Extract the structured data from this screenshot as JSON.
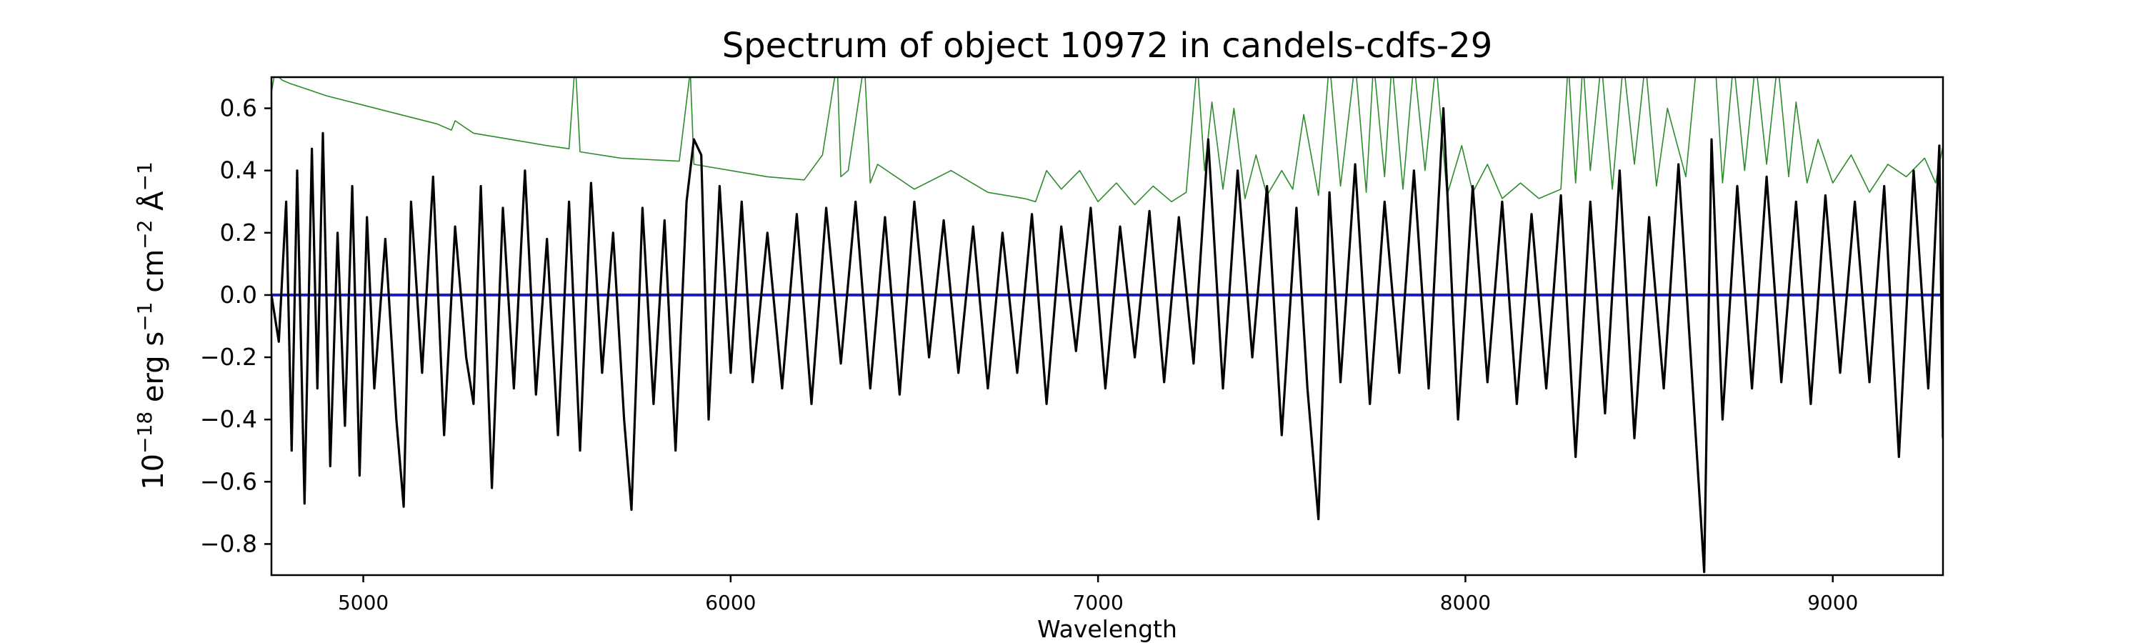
{
  "chart_data": {
    "type": "line",
    "title": "Spectrum of object 10972 in candels-cdfs-29",
    "xlabel": "Wavelength",
    "ylabel_base": "10",
    "ylabel_exp": "−18",
    "ylabel_units": [
      {
        "t": " erg s"
      },
      {
        "t": "−1",
        "sup": true
      },
      {
        "t": " cm"
      },
      {
        "t": "−2",
        "sup": true
      },
      {
        "t": " Å"
      },
      {
        "t": "−1",
        "sup": true
      }
    ],
    "xlim": [
      4750,
      9300
    ],
    "ylim": [
      -0.9,
      0.7
    ],
    "xticks": [
      5000,
      6000,
      7000,
      8000,
      9000
    ],
    "yticks": [
      0.6,
      0.4,
      0.2,
      0.0,
      -0.2,
      -0.4,
      -0.6,
      -0.8
    ],
    "ytick_labels": [
      "0.6",
      "0.4",
      "0.2",
      "0.0",
      "−0.2",
      "−0.4",
      "−0.6",
      "−0.8"
    ],
    "grid": false,
    "series": [
      {
        "role": "sky",
        "color": "#2e8b2e",
        "x": [
          4750,
          4760,
          4770,
          4780,
          4800,
          4850,
          4900,
          5000,
          5100,
          5200,
          5240,
          5250,
          5300,
          5400,
          5500,
          5560,
          5577,
          5590,
          5700,
          5860,
          5890,
          5900,
          6000,
          6100,
          6200,
          6250,
          6290,
          6300,
          6320,
          6364,
          6380,
          6400,
          6500,
          6600,
          6700,
          6800,
          6830,
          6860,
          6900,
          6950,
          7000,
          7050,
          7100,
          7150,
          7200,
          7240,
          7270,
          7290,
          7310,
          7340,
          7370,
          7400,
          7430,
          7460,
          7500,
          7530,
          7560,
          7600,
          7630,
          7660,
          7700,
          7730,
          7750,
          7780,
          7800,
          7830,
          7860,
          7890,
          7920,
          7950,
          7990,
          8020,
          8060,
          8100,
          8150,
          8200,
          8260,
          8280,
          8300,
          8320,
          8340,
          8370,
          8400,
          8430,
          8460,
          8490,
          8520,
          8550,
          8600,
          8630,
          8650,
          8680,
          8700,
          8730,
          8760,
          8790,
          8820,
          8850,
          8880,
          8900,
          8930,
          8960,
          9000,
          9050,
          9100,
          9150,
          9200,
          9250,
          9280,
          9300
        ],
        "y": [
          0.65,
          0.72,
          0.7,
          0.69,
          0.68,
          0.66,
          0.64,
          0.61,
          0.58,
          0.55,
          0.53,
          0.56,
          0.52,
          0.5,
          0.48,
          0.47,
          0.75,
          0.46,
          0.44,
          0.43,
          0.72,
          0.42,
          0.4,
          0.38,
          0.37,
          0.45,
          0.75,
          0.38,
          0.4,
          0.75,
          0.36,
          0.42,
          0.34,
          0.4,
          0.33,
          0.31,
          0.3,
          0.4,
          0.34,
          0.4,
          0.3,
          0.36,
          0.29,
          0.35,
          0.3,
          0.33,
          0.75,
          0.4,
          0.62,
          0.34,
          0.6,
          0.31,
          0.45,
          0.32,
          0.4,
          0.34,
          0.58,
          0.32,
          0.75,
          0.35,
          0.75,
          0.33,
          0.75,
          0.38,
          0.75,
          0.34,
          0.75,
          0.4,
          0.75,
          0.32,
          0.48,
          0.33,
          0.42,
          0.31,
          0.36,
          0.31,
          0.34,
          0.75,
          0.36,
          0.75,
          0.4,
          0.75,
          0.34,
          0.75,
          0.42,
          0.75,
          0.35,
          0.6,
          0.38,
          0.75,
          0.75,
          0.75,
          0.36,
          0.75,
          0.4,
          0.75,
          0.42,
          0.75,
          0.38,
          0.62,
          0.36,
          0.5,
          0.36,
          0.45,
          0.33,
          0.42,
          0.38,
          0.44,
          0.36,
          0.48
        ]
      },
      {
        "role": "model",
        "color": "#1a1acc",
        "x": [
          4750,
          9300
        ],
        "y": [
          0.0,
          0.0
        ]
      },
      {
        "role": "flux",
        "color": "#000000",
        "x": [
          4750,
          4770,
          4790,
          4805,
          4820,
          4840,
          4860,
          4875,
          4890,
          4910,
          4930,
          4950,
          4970,
          4990,
          5010,
          5030,
          5060,
          5090,
          5110,
          5130,
          5160,
          5190,
          5220,
          5250,
          5280,
          5300,
          5320,
          5350,
          5380,
          5410,
          5440,
          5470,
          5500,
          5530,
          5560,
          5590,
          5620,
          5650,
          5680,
          5710,
          5730,
          5760,
          5790,
          5820,
          5850,
          5880,
          5900,
          5920,
          5940,
          5970,
          6000,
          6030,
          6060,
          6100,
          6140,
          6180,
          6220,
          6260,
          6300,
          6340,
          6380,
          6420,
          6460,
          6500,
          6540,
          6580,
          6620,
          6660,
          6700,
          6740,
          6780,
          6820,
          6860,
          6900,
          6940,
          6980,
          7020,
          7060,
          7100,
          7140,
          7180,
          7220,
          7260,
          7300,
          7340,
          7380,
          7420,
          7460,
          7500,
          7540,
          7570,
          7600,
          7630,
          7660,
          7700,
          7740,
          7780,
          7820,
          7860,
          7900,
          7940,
          7980,
          8020,
          8060,
          8100,
          8140,
          8180,
          8220,
          8260,
          8300,
          8340,
          8380,
          8420,
          8460,
          8500,
          8540,
          8580,
          8620,
          8650,
          8670,
          8700,
          8740,
          8780,
          8820,
          8860,
          8900,
          8940,
          8980,
          9020,
          9060,
          9100,
          9140,
          9180,
          9220,
          9260,
          9290,
          9300
        ],
        "y": [
          0.0,
          -0.15,
          0.3,
          -0.5,
          0.4,
          -0.67,
          0.47,
          -0.3,
          0.52,
          -0.55,
          0.2,
          -0.42,
          0.35,
          -0.58,
          0.25,
          -0.3,
          0.18,
          -0.4,
          -0.68,
          0.3,
          -0.25,
          0.38,
          -0.45,
          0.22,
          -0.2,
          -0.35,
          0.35,
          -0.62,
          0.28,
          -0.3,
          0.4,
          -0.32,
          0.18,
          -0.45,
          0.3,
          -0.5,
          0.36,
          -0.25,
          0.2,
          -0.4,
          -0.69,
          0.28,
          -0.35,
          0.24,
          -0.5,
          0.3,
          0.5,
          0.45,
          -0.4,
          0.35,
          -0.25,
          0.3,
          -0.28,
          0.2,
          -0.3,
          0.26,
          -0.35,
          0.28,
          -0.22,
          0.3,
          -0.3,
          0.25,
          -0.32,
          0.3,
          -0.2,
          0.24,
          -0.25,
          0.22,
          -0.3,
          0.2,
          -0.25,
          0.26,
          -0.35,
          0.22,
          -0.18,
          0.28,
          -0.3,
          0.22,
          -0.2,
          0.27,
          -0.28,
          0.25,
          -0.22,
          0.5,
          -0.3,
          0.4,
          -0.2,
          0.35,
          -0.45,
          0.28,
          -0.3,
          -0.72,
          0.33,
          -0.28,
          0.42,
          -0.35,
          0.3,
          -0.25,
          0.4,
          -0.3,
          0.6,
          -0.4,
          0.35,
          -0.28,
          0.3,
          -0.35,
          0.26,
          -0.3,
          0.32,
          -0.52,
          0.3,
          -0.38,
          0.4,
          -0.46,
          0.25,
          -0.3,
          0.42,
          -0.32,
          -0.89,
          0.5,
          -0.4,
          0.35,
          -0.3,
          0.38,
          -0.28,
          0.3,
          -0.35,
          0.32,
          -0.25,
          0.3,
          -0.28,
          0.35,
          -0.52,
          0.4,
          -0.3,
          0.48,
          -0.46
        ]
      }
    ]
  }
}
